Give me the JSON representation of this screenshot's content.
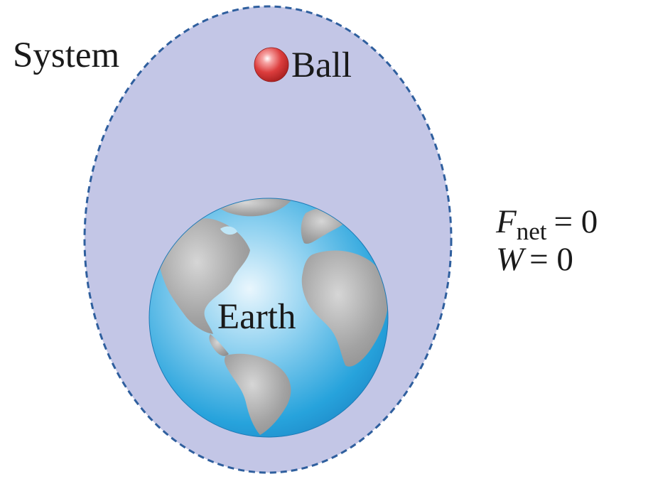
{
  "labels": {
    "system": "System",
    "ball": "Ball",
    "earth": "Earth"
  },
  "equations": {
    "fnet": {
      "symbol": "F",
      "subscript": "net",
      "relation": "= 0"
    },
    "work": {
      "symbol": "W",
      "relation": "= 0"
    }
  },
  "colors": {
    "system_fill": "#c3c6e6",
    "system_border": "#2f5f9e",
    "ocean": "#2aa7de",
    "land": "#9a9a9a",
    "ball": "#d93a3a"
  }
}
